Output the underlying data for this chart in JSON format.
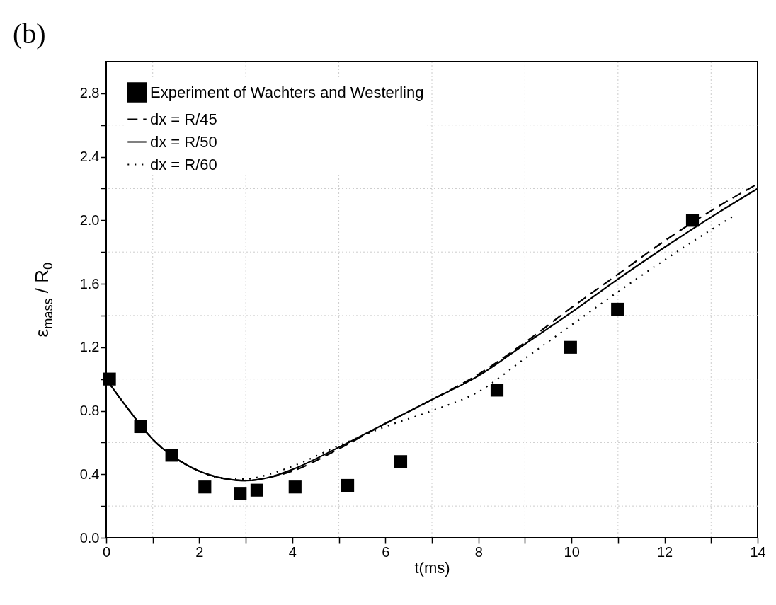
{
  "chart_data": {
    "type": "line",
    "title": "(b)",
    "xlabel": "t(ms)",
    "ylabel": "ε$_{mass}$ / R$_{0}$",
    "xlim": [
      0,
      14
    ],
    "ylim": [
      0,
      3.0
    ],
    "xticks": [
      0,
      {
        "value": 1,
        "label": null
      },
      2,
      {
        "value": 3,
        "label": null
      },
      4,
      {
        "value": 5,
        "label": null
      },
      6,
      {
        "value": 7,
        "label": null
      },
      8,
      {
        "value": 9,
        "label": null
      },
      10,
      {
        "value": 11,
        "label": null
      },
      12,
      {
        "value": 13,
        "label": null
      },
      14
    ],
    "yticks": [
      {
        "value": 0,
        "label": "0.0"
      },
      {
        "value": 0.2,
        "label": null
      },
      0.4,
      {
        "value": 0.6,
        "label": null
      },
      0.8,
      {
        "value": 1.0,
        "label": null
      },
      1.2,
      {
        "value": 1.4,
        "label": null
      },
      1.6,
      {
        "value": 1.8,
        "label": null
      },
      {
        "value": 2.0,
        "label": "2.0"
      },
      {
        "value": 2.2,
        "label": null
      },
      2.4,
      {
        "value": 2.6,
        "label": null
      },
      2.8
    ],
    "grid": true,
    "legend": "top left",
    "series": [
      {
        "name": "Experiment of Wachters and Westerling",
        "type": "scatter",
        "marker": "square",
        "color": "#000000",
        "x": [
          0.07,
          0.74,
          1.41,
          2.12,
          2.88,
          3.24,
          4.06,
          5.19,
          6.33,
          8.4,
          9.98,
          10.99,
          12.6
        ],
        "values": [
          1.0,
          0.7,
          0.52,
          0.32,
          0.28,
          0.3,
          0.32,
          0.33,
          0.48,
          0.93,
          1.2,
          1.44,
          2.0
        ]
      },
      {
        "name": "dx = R/45",
        "line_style": "dashed",
        "color": "#000000",
        "x": [
          0,
          0.5,
          1,
          1.5,
          2,
          2.5,
          3,
          3.5,
          4,
          5,
          6,
          7,
          8,
          9,
          10,
          11,
          12,
          13,
          14
        ],
        "values": [
          1.0,
          0.8,
          0.62,
          0.5,
          0.42,
          0.375,
          0.36,
          0.38,
          0.42,
          0.56,
          0.72,
          0.87,
          1.03,
          1.23,
          1.45,
          1.66,
          1.87,
          2.06,
          2.23
        ]
      },
      {
        "name": "dx = R/50",
        "line_style": "solid",
        "color": "#000000",
        "x": [
          0,
          0.5,
          1,
          1.5,
          2,
          2.5,
          3,
          3.5,
          4,
          5,
          6,
          7,
          8,
          9,
          10,
          11,
          12,
          13,
          14
        ],
        "values": [
          1.0,
          0.8,
          0.62,
          0.5,
          0.42,
          0.375,
          0.36,
          0.38,
          0.43,
          0.57,
          0.72,
          0.87,
          1.02,
          1.22,
          1.42,
          1.63,
          1.83,
          2.02,
          2.2
        ]
      },
      {
        "name": "dx = R/60",
        "line_style": "dotted",
        "color": "#000000",
        "x": [
          0,
          0.5,
          1,
          1.5,
          2,
          2.5,
          3,
          3.5,
          4,
          5,
          6,
          7,
          8,
          9,
          10,
          11,
          12,
          13,
          13.5
        ],
        "values": [
          1.0,
          0.8,
          0.62,
          0.5,
          0.42,
          0.375,
          0.37,
          0.4,
          0.45,
          0.58,
          0.7,
          0.8,
          0.92,
          1.13,
          1.34,
          1.55,
          1.75,
          1.94,
          2.03
        ]
      }
    ]
  }
}
